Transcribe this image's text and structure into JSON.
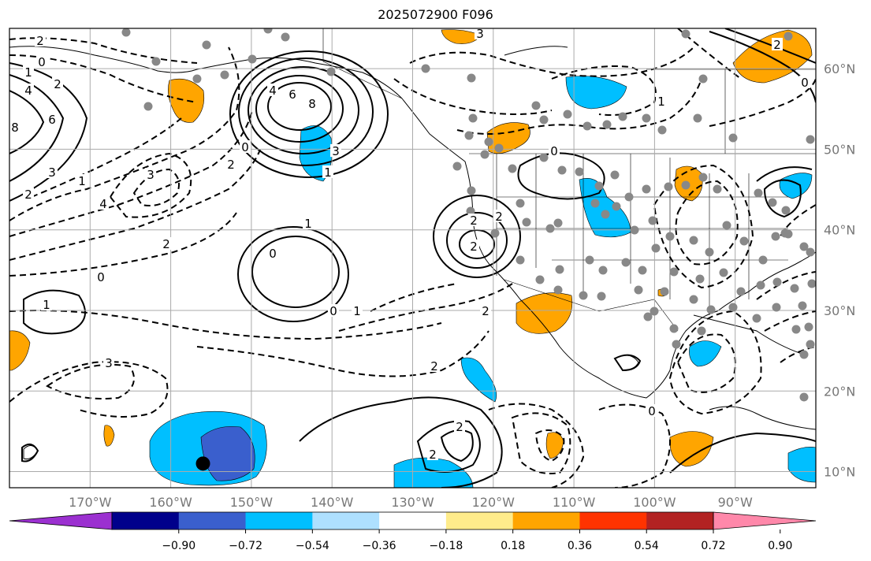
{
  "title": "2025072900 F096",
  "map": {
    "lon_range": [
      -180,
      -80
    ],
    "lat_range": [
      8,
      65
    ],
    "lon_ticks": [
      {
        "value": -170,
        "label": "170°W"
      },
      {
        "value": -160,
        "label": "160°W"
      },
      {
        "value": -150,
        "label": "150°W"
      },
      {
        "value": -140,
        "label": "140°W"
      },
      {
        "value": -130,
        "label": "130°W"
      },
      {
        "value": -120,
        "label": "120°W"
      },
      {
        "value": -110,
        "label": "110°W"
      },
      {
        "value": -100,
        "label": "100°W"
      },
      {
        "value": -90,
        "label": "90°W"
      }
    ],
    "lat_ticks": [
      {
        "value": 60,
        "label": "60°N"
      },
      {
        "value": 50,
        "label": "50°N"
      },
      {
        "value": 40,
        "label": "40°N"
      },
      {
        "value": 30,
        "label": "30°N"
      },
      {
        "value": 20,
        "label": "20°N"
      },
      {
        "value": 10,
        "label": "10°N"
      }
    ],
    "grid": true,
    "contour_labels": [
      "2",
      "0",
      "1",
      "2",
      "4",
      "6",
      "3",
      "2",
      "8",
      "6",
      "4",
      "8",
      "3",
      "1",
      "0",
      "2",
      "3",
      "4",
      "1",
      "2",
      "0",
      "1",
      "1",
      "0",
      "0",
      "1",
      "2",
      "2",
      "2",
      "2",
      "2",
      "2",
      "2",
      "3",
      "3",
      "2",
      "0",
      "1",
      "0",
      "0"
    ],
    "station_marker": {
      "lon": -156,
      "lat": 11
    }
  },
  "colorbar": {
    "ticks": [
      "−0.90",
      "−0.72",
      "−0.54",
      "−0.36",
      "−0.18",
      "0.18",
      "0.36",
      "0.54",
      "0.72",
      "0.90"
    ],
    "colors": [
      "#9b30d0",
      "#00008b",
      "#3a5fcd",
      "#00bfff",
      "#aee0ff",
      "#ffffff",
      "#ffec8b",
      "#ffa500",
      "#ff3300",
      "#b22222",
      "#ff88aa"
    ]
  },
  "colors": {
    "positive_fill": "#ffa500",
    "negative_fill": "#00bfff",
    "strong_negative_fill": "#3a5fcd",
    "station_dot": "#888888"
  }
}
